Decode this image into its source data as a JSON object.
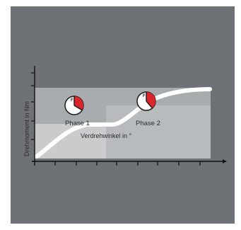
{
  "diagram": {
    "y_axis_label": "Drehmoment in Nm",
    "x_axis_label": "Verdrehwinkel in °",
    "phases": [
      {
        "label": "Phase 1",
        "fill_fraction": 0.35
      },
      {
        "label": "Phase 2",
        "fill_fraction": 0.4
      }
    ],
    "colors": {
      "background": "#6e7176",
      "panel_light": "#a9acae",
      "panel_lighter": "#c9cbcc",
      "curve": "#ffffff",
      "gauge_fill": "#d8262b",
      "axis": "#111111"
    },
    "icons": [
      "gauge-icon",
      "gauge-icon"
    ]
  }
}
